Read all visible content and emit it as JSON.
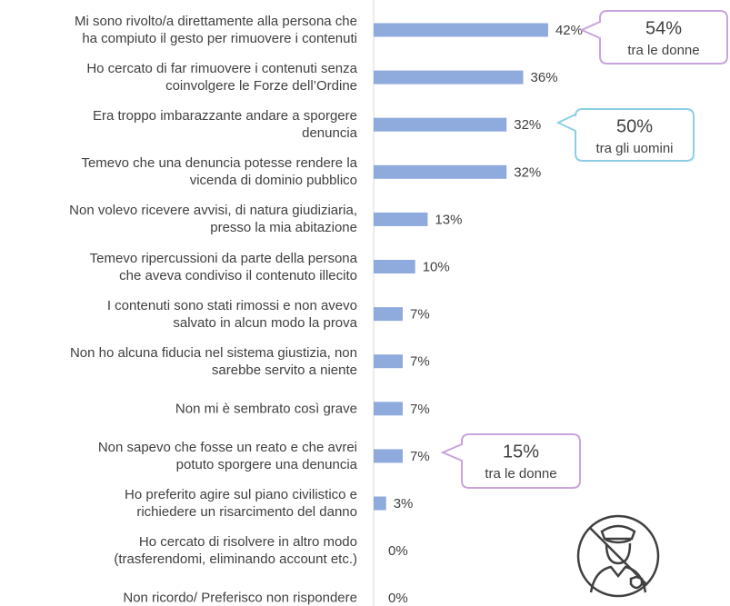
{
  "chart_data": {
    "type": "bar",
    "orientation": "horizontal",
    "color": "#8faadc",
    "categories": [
      "Mi sono rivolto/a direttamente alla persona che\nha compiuto il gesto per rimuovere i contenuti",
      "Ho cercato di far rimuovere i contenuti senza\ncoinvolgere le Forze dell’Ordine",
      "Era troppo imbarazzante andare a sporgere\ndenuncia",
      "Temevo che una denuncia potesse rendere la\nvicenda di dominio pubblico",
      "Non volevo ricevere avvisi, di natura giudiziaria,\npresso la mia abitazione",
      "Temevo ripercussioni da parte della persona\nche aveva condiviso il contenuto illecito",
      "I contenuti sono stati rimossi e non avevo\nsalvato in alcun modo la prova",
      "Non ho alcuna fiducia nel sistema giustizia, non\nsarebbe servito a niente",
      "Non mi è sembrato così grave",
      "Non sapevo che fosse un reato e che avrei\npotuto sporgere una denuncia",
      "Ho preferito agire sul piano civilistico e\nrichiedere un risarcimento del danno",
      "Ho cercato di risolvere in altro modo\n(trasferendomi, eliminando account etc.)",
      "Non ricordo/ Preferisco non rispondere"
    ],
    "values": [
      42,
      36,
      32,
      32,
      13,
      10,
      7,
      7,
      7,
      7,
      3,
      0,
      0
    ],
    "value_labels": [
      "42%",
      "36%",
      "32%",
      "32%",
      "13%",
      "10%",
      "7%",
      "7%",
      "7%",
      "7%",
      "3%",
      "0%",
      "0%"
    ],
    "annotations": [
      {
        "label": "54%",
        "text": "tra le donne",
        "color": "#c8a4dc"
      },
      {
        "label": "50%",
        "text": "tra gli uomini",
        "color": "#8ccfe4"
      },
      {
        "label": "15%",
        "text": "tra le donne",
        "color": "#c8a4dc"
      }
    ]
  }
}
